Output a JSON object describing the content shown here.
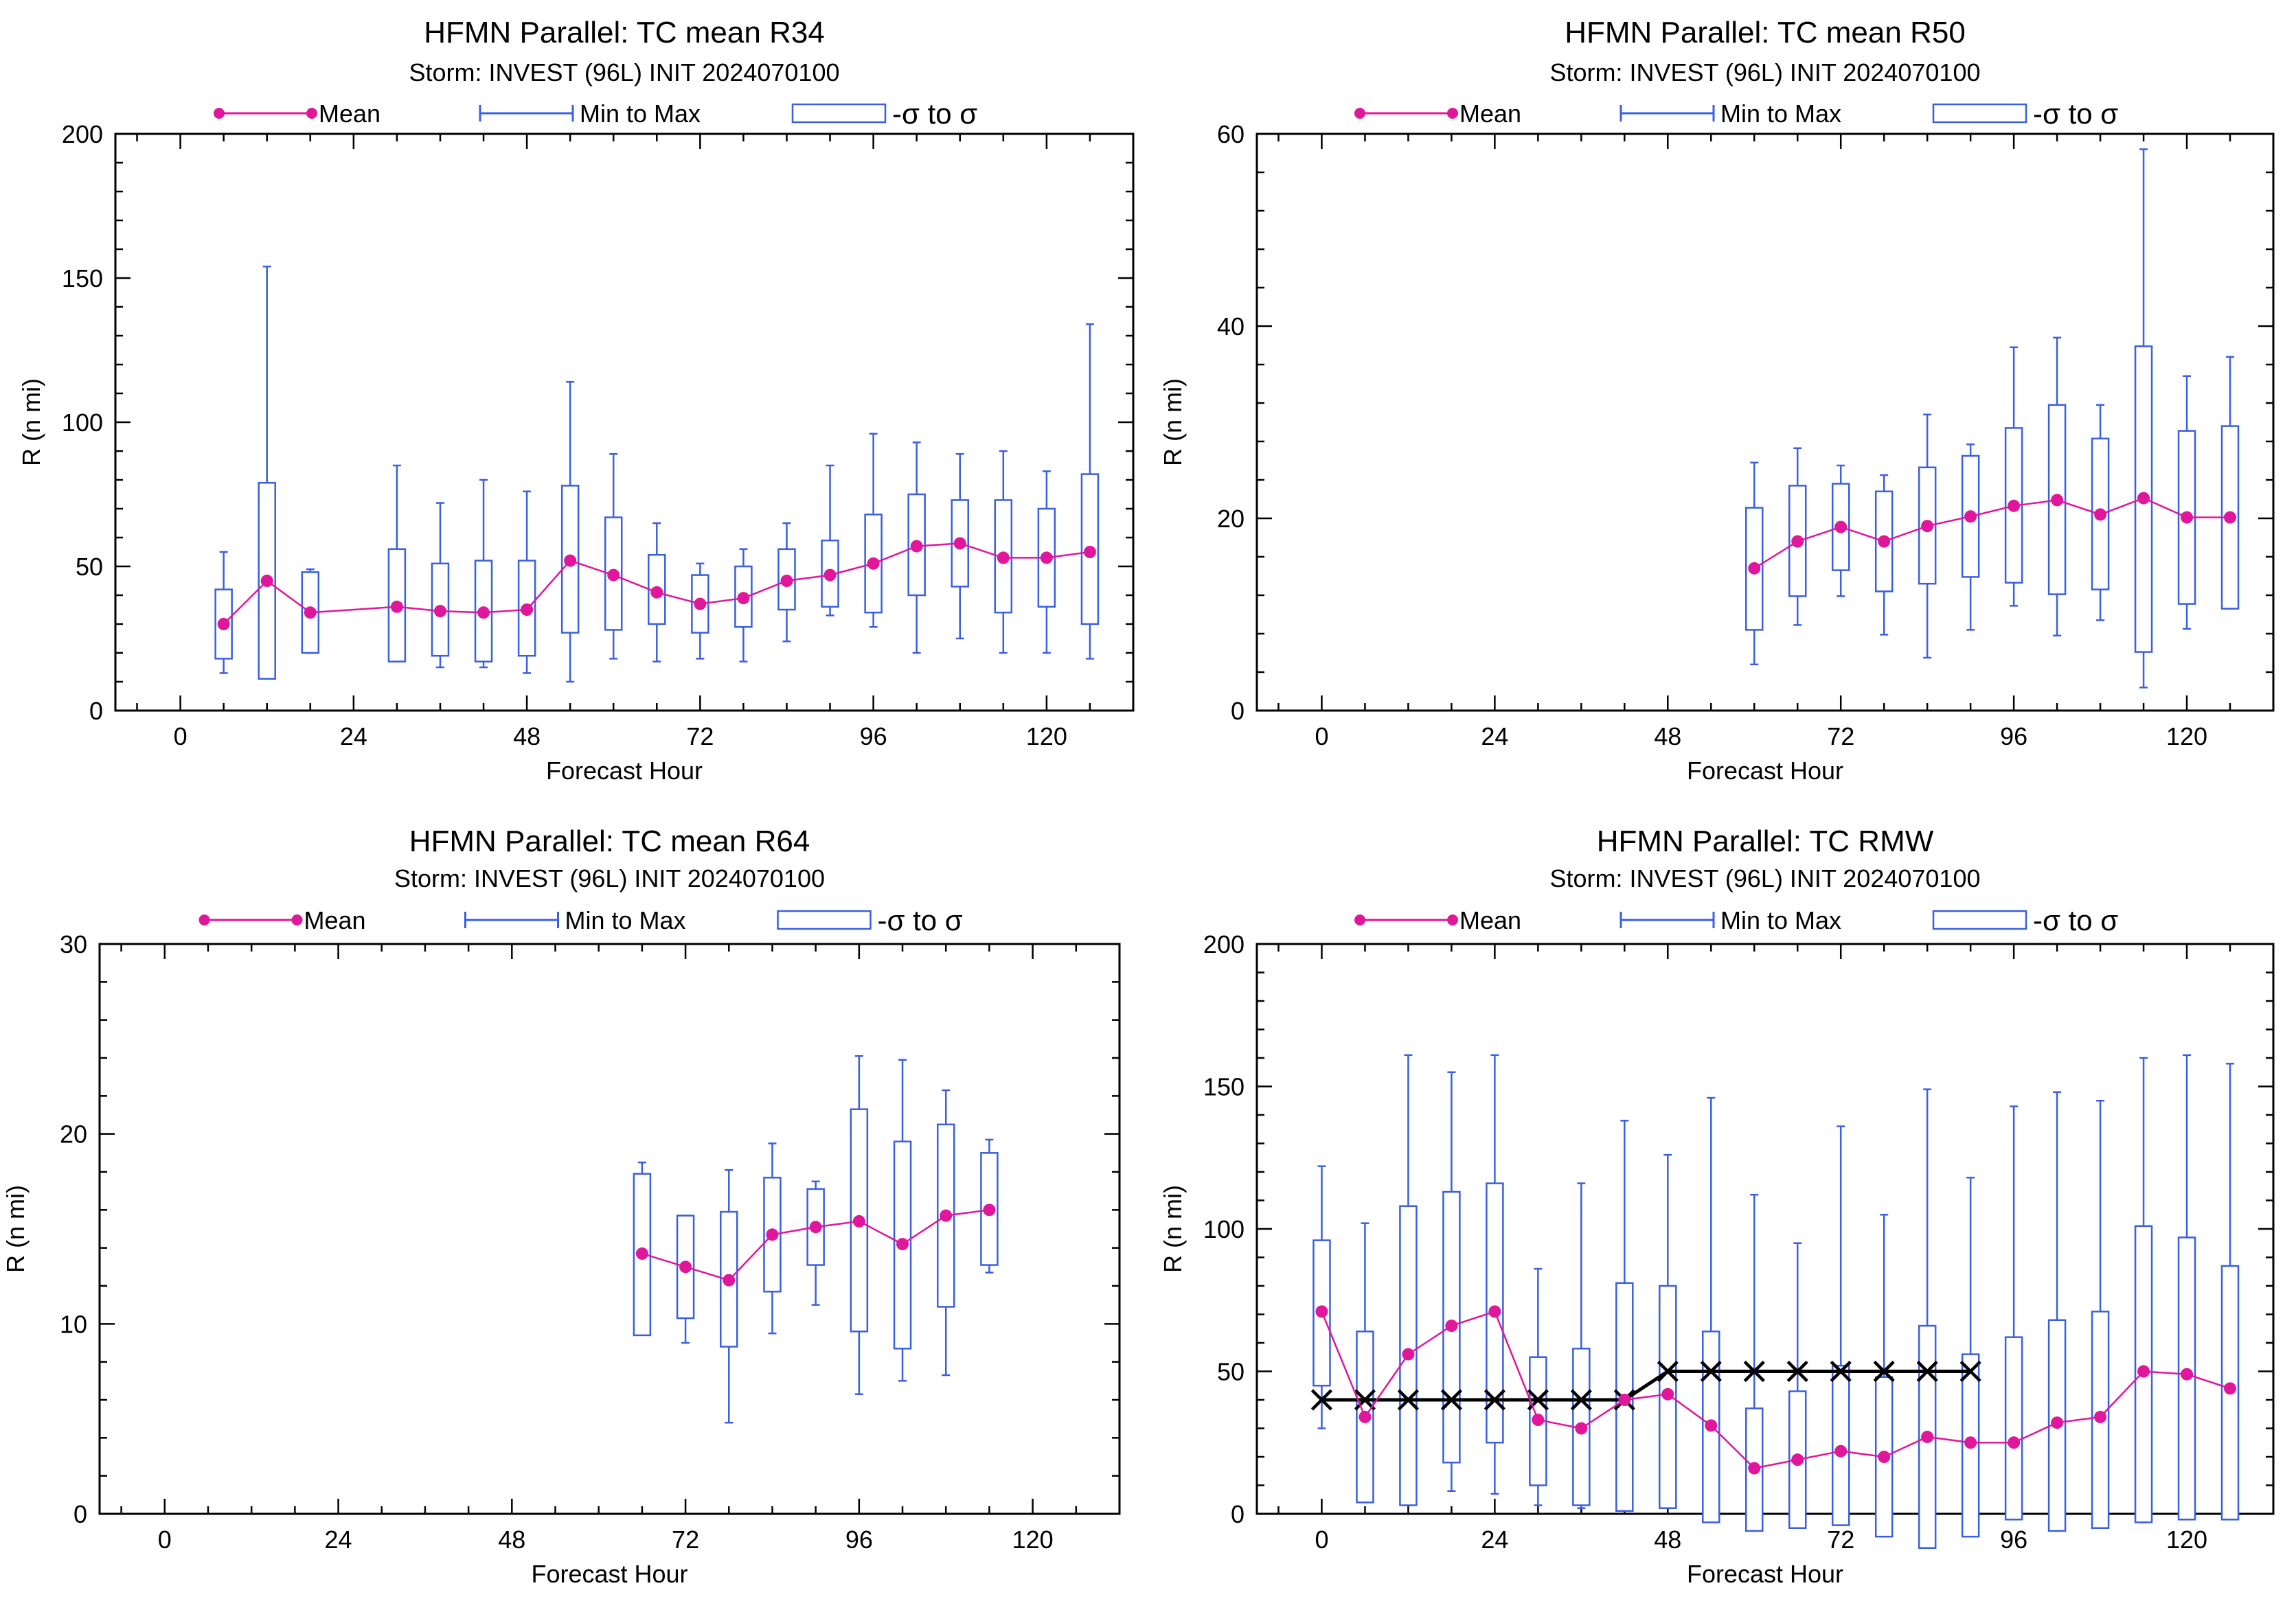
{
  "legend_labels": {
    "mean": "Mean",
    "minmax": "Min to Max",
    "sigma": "-σ to σ"
  },
  "colors": {
    "mean": "#e0169b",
    "box": "#3a5fe0",
    "axis": "#000000",
    "obs": "#000000"
  },
  "chart_data": [
    {
      "id": "r34",
      "type": "box",
      "title": "HFMN Parallel: TC mean R34",
      "subtitle": "Storm: INVEST (96L) INIT 2024070100",
      "xlabel": "Forecast Hour",
      "ylabel": "R (n mi)",
      "xlim": [
        -9,
        132
      ],
      "ylim": [
        0,
        200
      ],
      "xticks": [
        0,
        24,
        48,
        72,
        96,
        120
      ],
      "yticks": [
        0,
        50,
        100,
        150,
        200
      ],
      "x": [
        6,
        12,
        18,
        30,
        36,
        42,
        48,
        54,
        60,
        66,
        72,
        78,
        84,
        90,
        96,
        102,
        108,
        114,
        120,
        126
      ],
      "mean": [
        30,
        45,
        34,
        36,
        34.5,
        34,
        35,
        52,
        47,
        41,
        37,
        39,
        45,
        47,
        51,
        57,
        58,
        53,
        53,
        55
      ],
      "min": [
        13,
        12,
        20,
        17,
        15,
        15,
        13,
        10,
        18,
        17,
        18,
        17,
        24,
        33,
        29,
        20,
        25,
        20,
        20,
        18
      ],
      "max": [
        55,
        154,
        49,
        85,
        72,
        80,
        76,
        114,
        89,
        65,
        51,
        56,
        65,
        85,
        96,
        93,
        89,
        90,
        83,
        134
      ],
      "sig_lo": [
        18,
        11,
        20,
        17,
        19,
        17,
        19,
        27,
        28,
        30,
        27,
        29,
        35,
        36,
        34,
        40,
        43,
        34,
        36,
        30
      ],
      "sig_hi": [
        42,
        79,
        48,
        56,
        51,
        52,
        52,
        78,
        67,
        54,
        47,
        50,
        56,
        59,
        68,
        75,
        73,
        73,
        70,
        82
      ]
    },
    {
      "id": "r50",
      "type": "box",
      "title": "HFMN Parallel: TC mean R50",
      "subtitle": "Storm: INVEST (96L) INIT 2024070100",
      "xlabel": "Forecast Hour",
      "ylabel": "R (n mi)",
      "xlim": [
        -9,
        132
      ],
      "ylim": [
        0,
        60
      ],
      "xticks": [
        0,
        24,
        48,
        72,
        96,
        120
      ],
      "yticks": [
        0,
        20,
        40,
        60
      ],
      "x": [
        60,
        66,
        72,
        78,
        84,
        90,
        96,
        102,
        108,
        114,
        120,
        126
      ],
      "mean": [
        14.8,
        17.6,
        19.1,
        17.6,
        19.2,
        20.2,
        21.3,
        21.9,
        20.4,
        22.1,
        20.1,
        20.1
      ],
      "min": [
        4.8,
        8.9,
        11.9,
        7.9,
        5.5,
        8.4,
        10.9,
        7.8,
        9.4,
        2.4,
        8.5,
        10.6
      ],
      "max": [
        25.8,
        27.3,
        25.5,
        24.5,
        30.8,
        27.7,
        37.8,
        38.8,
        31.8,
        58.4,
        34.8,
        36.8
      ],
      "sig_lo": [
        8.4,
        11.9,
        14.6,
        12.4,
        13.2,
        13.9,
        13.3,
        12.1,
        12.6,
        6.1,
        11.1,
        10.6
      ],
      "sig_hi": [
        21.1,
        23.4,
        23.6,
        22.8,
        25.3,
        26.5,
        29.4,
        31.8,
        28.3,
        37.9,
        29.1,
        29.6
      ]
    },
    {
      "id": "r64",
      "type": "box",
      "title": "HFMN Parallel: TC mean R64",
      "subtitle": "Storm: INVEST (96L) INIT 2024070100",
      "xlabel": "Forecast Hour",
      "ylabel": "R (n mi)",
      "xlim": [
        -9,
        132
      ],
      "ylim": [
        0,
        30
      ],
      "xticks": [
        0,
        24,
        48,
        72,
        96,
        120
      ],
      "yticks": [
        0,
        10,
        20,
        30
      ],
      "x": [
        66,
        72,
        78,
        84,
        90,
        96,
        102,
        108,
        114
      ],
      "mean": [
        13.7,
        13.0,
        12.3,
        14.7,
        15.1,
        15.4,
        14.2,
        15.7,
        16.0
      ],
      "min": [
        9.5,
        9.0,
        4.8,
        9.5,
        11.0,
        6.3,
        7.0,
        7.3,
        12.7
      ],
      "max": [
        18.5,
        15.7,
        18.1,
        19.5,
        17.5,
        24.1,
        23.9,
        22.3,
        19.7
      ],
      "sig_lo": [
        9.4,
        10.3,
        8.8,
        11.7,
        13.1,
        9.6,
        8.7,
        10.9,
        13.1
      ],
      "sig_hi": [
        17.9,
        15.7,
        15.9,
        17.7,
        17.1,
        21.3,
        19.6,
        20.5,
        19.0
      ]
    },
    {
      "id": "rmw",
      "type": "box",
      "title": "HFMN Parallel: TC RMW",
      "subtitle": "Storm: INVEST (96L) INIT 2024070100",
      "xlabel": "Forecast Hour",
      "ylabel": "R (n mi)",
      "xlim": [
        -9,
        132
      ],
      "ylim": [
        0,
        200
      ],
      "xticks": [
        0,
        24,
        48,
        72,
        96,
        120
      ],
      "yticks": [
        0,
        50,
        100,
        150,
        200
      ],
      "x": [
        0,
        6,
        12,
        18,
        24,
        30,
        36,
        42,
        48,
        54,
        60,
        66,
        72,
        78,
        84,
        90,
        96,
        102,
        108,
        114,
        120,
        126
      ],
      "mean": [
        71,
        34,
        56,
        66,
        71,
        33,
        30,
        40,
        42,
        31,
        16,
        19,
        22,
        20,
        27,
        25,
        25,
        32,
        34,
        50,
        49,
        44
      ],
      "min": [
        30,
        5,
        3,
        8,
        7,
        3,
        2,
        1,
        2,
        -3,
        -6,
        -5,
        -4,
        -8,
        -12,
        -8,
        -2,
        -6,
        -5,
        -3,
        -2,
        -2
      ],
      "max": [
        122,
        102,
        161,
        155,
        161,
        86,
        116,
        138,
        126,
        146,
        112,
        95,
        136,
        105,
        149,
        118,
        143,
        148,
        145,
        160,
        161,
        158
      ],
      "sig_lo": [
        45,
        4,
        3,
        18,
        25,
        10,
        3,
        1,
        2,
        -3,
        -6,
        -5,
        -4,
        -8,
        -12,
        -8,
        -2,
        -6,
        -5,
        -3,
        -2,
        -2
      ],
      "sig_hi": [
        96,
        64,
        108,
        113,
        116,
        55,
        58,
        81,
        80,
        64,
        37,
        43,
        52,
        48,
        66,
        56,
        62,
        68,
        71,
        101,
        97,
        87
      ],
      "obs": {
        "x": [
          0,
          6,
          12,
          18,
          24,
          30,
          36,
          42,
          48,
          54,
          60,
          66,
          72,
          78,
          84,
          90
        ],
        "y": [
          40,
          40,
          40,
          40,
          40,
          40,
          40,
          40,
          50,
          50,
          50,
          50,
          50,
          50,
          50,
          50
        ]
      }
    }
  ]
}
